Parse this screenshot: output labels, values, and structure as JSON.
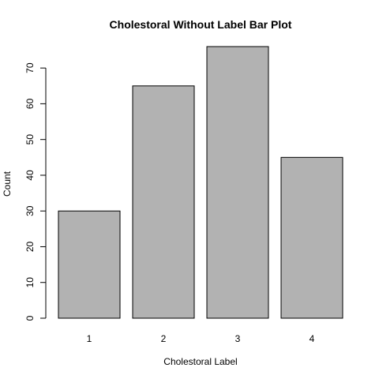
{
  "chart_data": {
    "type": "bar",
    "title": "Cholestoral Without Label Bar Plot",
    "xlabel": "Cholestoral Label",
    "ylabel": "Count",
    "categories": [
      "1",
      "2",
      "3",
      "4"
    ],
    "values": [
      30,
      65,
      76,
      45
    ],
    "yticks": [
      0,
      10,
      20,
      30,
      40,
      50,
      60,
      70
    ],
    "ylim": [
      0,
      76
    ],
    "grid": false,
    "legend": "none",
    "colors": {
      "bar_fill": "#b2b2b2",
      "bar_stroke": "#000000",
      "background": "#ffffff"
    }
  }
}
